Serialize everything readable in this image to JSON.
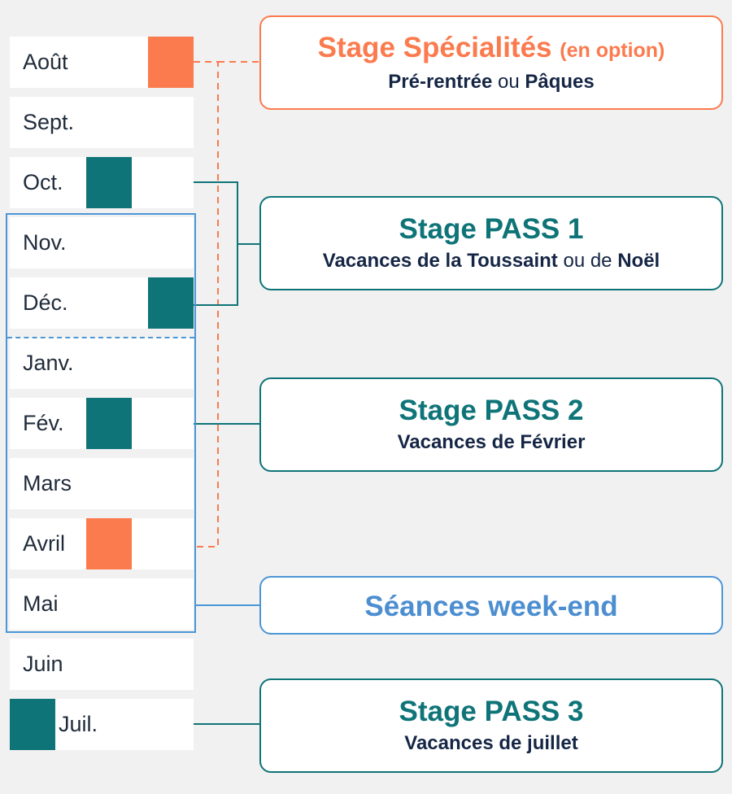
{
  "months": [
    {
      "label": "Août",
      "marker": "orange"
    },
    {
      "label": "Sept.",
      "marker": null
    },
    {
      "label": "Oct.",
      "marker": "teal"
    },
    {
      "label": "Nov.",
      "marker": null
    },
    {
      "label": "Déc.",
      "marker": "teal"
    },
    {
      "label": "Janv.",
      "marker": null
    },
    {
      "label": "Fév.",
      "marker": "teal"
    },
    {
      "label": "Mars",
      "marker": null
    },
    {
      "label": "Avril",
      "marker": "orange"
    },
    {
      "label": "Mai",
      "marker": null
    },
    {
      "label": "Juin",
      "marker": null
    },
    {
      "label": "Juil.",
      "marker": "teal"
    }
  ],
  "boxes": {
    "specialites": {
      "title": "Stage Spécialités",
      "option": "(en option)",
      "sub_a": "Pré-rentrée",
      "sub_or": "ou",
      "sub_b": "Pâques"
    },
    "pass1": {
      "title": "Stage PASS 1",
      "sub_a": "Vacances de la Toussaint",
      "sub_or": "ou de",
      "sub_b": "Noël"
    },
    "pass2": {
      "title": "Stage PASS 2",
      "sub": "Vacances de Février"
    },
    "weekend": {
      "title": "Séances week-end"
    },
    "pass3": {
      "title": "Stage PASS 3",
      "sub": "Vacances de juillet"
    }
  },
  "colors": {
    "teal": "#0f7478",
    "orange": "#fb7a4e",
    "blue": "#4c96d6",
    "navy": "#152645",
    "background": "#f1f1f1"
  }
}
